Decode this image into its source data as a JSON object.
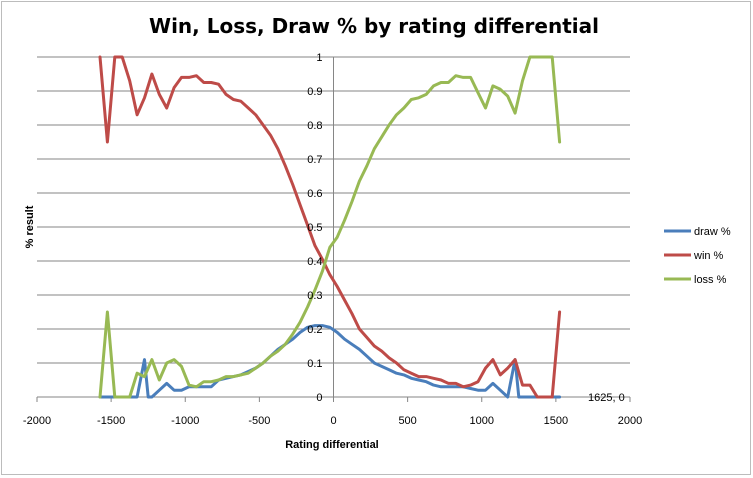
{
  "chart_data": {
    "type": "line",
    "title": "Win, Loss, Draw % by rating differential",
    "xlabel": "Rating differential",
    "ylabel": "% result",
    "xlim": [
      -2000,
      2000
    ],
    "ylim": [
      0,
      1
    ],
    "xticks": [
      "-2000",
      "-1500",
      "-1000",
      "-500",
      "0",
      "500",
      "1000",
      "1500",
      "2000"
    ],
    "yticks": [
      "0",
      "0.1",
      "0.2",
      "0.3",
      "0.4",
      "0.5",
      "0.6",
      "0.7",
      "0.8",
      "0.9",
      "1"
    ],
    "grid": "horizontal",
    "legend": "right",
    "annotation": {
      "text": "1625, 0",
      "x": 1625,
      "y": 0
    },
    "series": [
      {
        "name": "draw %",
        "color": "#4a7ebb",
        "x": [
          -1575,
          -1525,
          -1475,
          -1425,
          -1375,
          -1325,
          -1275,
          -1250,
          -1225,
          -1175,
          -1125,
          -1075,
          -1025,
          -975,
          -925,
          -875,
          -825,
          -775,
          -725,
          -675,
          -625,
          -575,
          -525,
          -475,
          -425,
          -375,
          -325,
          -275,
          -225,
          -175,
          -125,
          -75,
          -25,
          25,
          75,
          125,
          175,
          225,
          275,
          325,
          375,
          425,
          475,
          525,
          575,
          625,
          675,
          725,
          775,
          825,
          875,
          925,
          975,
          1025,
          1075,
          1125,
          1175,
          1225,
          1250,
          1275,
          1325,
          1375,
          1425,
          1475,
          1525
        ],
        "values": [
          0,
          0,
          0,
          0,
          0,
          0,
          0.11,
          0,
          0,
          0.02,
          0.04,
          0.02,
          0.02,
          0.03,
          0.03,
          0.03,
          0.03,
          0.05,
          0.055,
          0.06,
          0.065,
          0.075,
          0.085,
          0.1,
          0.12,
          0.14,
          0.155,
          0.17,
          0.19,
          0.205,
          0.21,
          0.21,
          0.205,
          0.19,
          0.17,
          0.155,
          0.14,
          0.12,
          0.1,
          0.09,
          0.08,
          0.07,
          0.065,
          0.055,
          0.05,
          0.045,
          0.035,
          0.03,
          0.03,
          0.03,
          0.03,
          0.025,
          0.02,
          0.02,
          0.04,
          0.02,
          0,
          0.11,
          0,
          0,
          0,
          0,
          0,
          0,
          0
        ]
      },
      {
        "name": "win %",
        "color": "#be4b48",
        "x": [
          -1575,
          -1525,
          -1475,
          -1425,
          -1375,
          -1325,
          -1275,
          -1225,
          -1175,
          -1125,
          -1075,
          -1025,
          -975,
          -925,
          -875,
          -825,
          -775,
          -725,
          -675,
          -625,
          -575,
          -525,
          -475,
          -425,
          -375,
          -325,
          -275,
          -225,
          -175,
          -125,
          -75,
          -25,
          25,
          75,
          125,
          175,
          225,
          275,
          325,
          375,
          425,
          475,
          525,
          575,
          625,
          675,
          725,
          775,
          825,
          875,
          925,
          975,
          1025,
          1075,
          1125,
          1175,
          1225,
          1275,
          1325,
          1375,
          1425,
          1475,
          1525
        ],
        "values": [
          1,
          0.75,
          1,
          1,
          0.93,
          0.83,
          0.88,
          0.95,
          0.89,
          0.85,
          0.91,
          0.94,
          0.94,
          0.945,
          0.925,
          0.925,
          0.92,
          0.89,
          0.875,
          0.87,
          0.85,
          0.83,
          0.8,
          0.77,
          0.73,
          0.68,
          0.625,
          0.565,
          0.505,
          0.445,
          0.405,
          0.36,
          0.325,
          0.285,
          0.245,
          0.2,
          0.175,
          0.15,
          0.135,
          0.115,
          0.1,
          0.08,
          0.07,
          0.06,
          0.06,
          0.055,
          0.05,
          0.04,
          0.04,
          0.03,
          0.035,
          0.045,
          0.085,
          0.11,
          0.065,
          0.085,
          0.11,
          0.035,
          0.035,
          0,
          0,
          0,
          0.25
        ]
      },
      {
        "name": "loss %",
        "color": "#98b954",
        "x": [
          -1575,
          -1525,
          -1475,
          -1425,
          -1375,
          -1325,
          -1275,
          -1225,
          -1175,
          -1125,
          -1075,
          -1025,
          -975,
          -925,
          -875,
          -825,
          -775,
          -725,
          -675,
          -625,
          -575,
          -525,
          -475,
          -425,
          -375,
          -325,
          -275,
          -225,
          -175,
          -125,
          -75,
          -25,
          25,
          75,
          125,
          175,
          225,
          275,
          325,
          375,
          425,
          475,
          525,
          575,
          625,
          675,
          725,
          775,
          825,
          875,
          925,
          975,
          1025,
          1075,
          1125,
          1175,
          1225,
          1275,
          1325,
          1375,
          1425,
          1475,
          1525
        ],
        "values": [
          0,
          0.25,
          0,
          0,
          0,
          0.07,
          0.06,
          0.11,
          0.05,
          0.1,
          0.11,
          0.09,
          0.035,
          0.03,
          0.045,
          0.045,
          0.05,
          0.06,
          0.06,
          0.065,
          0.07,
          0.085,
          0.1,
          0.12,
          0.135,
          0.155,
          0.185,
          0.22,
          0.265,
          0.315,
          0.37,
          0.44,
          0.47,
          0.52,
          0.575,
          0.635,
          0.68,
          0.73,
          0.765,
          0.8,
          0.83,
          0.85,
          0.875,
          0.88,
          0.89,
          0.915,
          0.925,
          0.925,
          0.945,
          0.94,
          0.94,
          0.895,
          0.85,
          0.915,
          0.905,
          0.885,
          0.835,
          0.93,
          1,
          1,
          1,
          1,
          0.75
        ]
      }
    ]
  }
}
